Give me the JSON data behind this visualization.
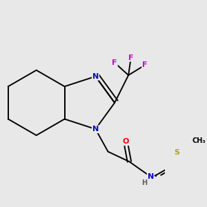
{
  "background_color": "#e8e8e8",
  "atom_colors": {
    "N": "#0000cc",
    "O": "#ff0000",
    "F": "#cc00cc",
    "S": "#aaaa00",
    "C": "#000000",
    "H": "#606060"
  },
  "bond_color": "#000000",
  "bond_width": 1.4,
  "figure_size": [
    3.0,
    3.0
  ],
  "dpi": 100
}
